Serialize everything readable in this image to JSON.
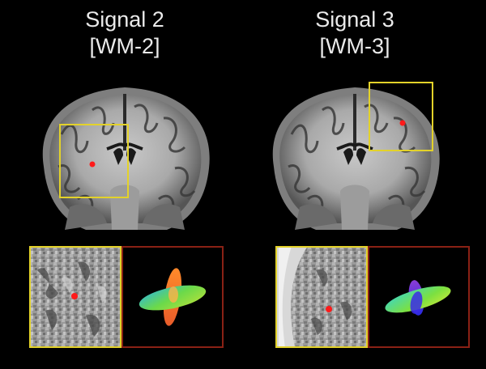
{
  "panels": [
    {
      "title": "Signal 2",
      "subtitle": "[WM-2]"
    },
    {
      "title": "Signal 3",
      "subtitle": "[WM-3]"
    }
  ],
  "colors": {
    "roi_box": "#e3d22a",
    "glyph_box": "#8a2115",
    "marker": "#ff1a1a"
  }
}
